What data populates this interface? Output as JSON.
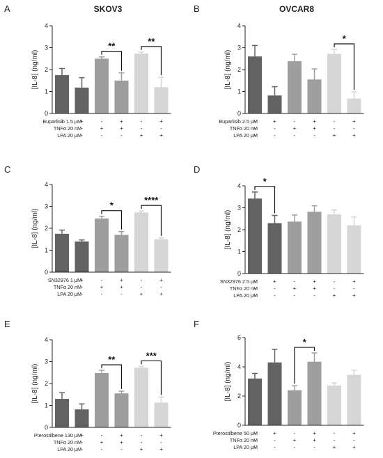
{
  "figure_titles": [
    "SKOV3",
    "OVCAR8"
  ],
  "chart_data": [
    {
      "panel": "A",
      "type": "bar",
      "title": "SKOV3",
      "ylabel": "[IL-8] (ng/ml)",
      "ylim": [
        0,
        4
      ],
      "yticks": [
        0,
        1,
        2,
        3,
        4
      ],
      "values": [
        1.75,
        1.18,
        2.5,
        1.5,
        2.73,
        1.2
      ],
      "errors": [
        0.3,
        0.45,
        0.08,
        0.35,
        0.07,
        0.45
      ],
      "colors": [
        "#626262",
        "#626262",
        "#9e9e9e",
        "#9e9e9e",
        "#d6d6d6",
        "#d6d6d6"
      ],
      "rows": [
        {
          "label": "Buparlisib 1.5 μM",
          "marks": [
            "-",
            "+",
            "-",
            "+",
            "-",
            "+"
          ]
        },
        {
          "label": "TNFα 20 nM",
          "marks": [
            "-",
            "-",
            "+",
            "+",
            "-",
            "-"
          ]
        },
        {
          "label": "LPA 20 μM",
          "marks": [
            "-",
            "-",
            "-",
            "-",
            "+",
            "+"
          ]
        }
      ],
      "significance": [
        {
          "from": 2,
          "to": 3,
          "label": "**"
        },
        {
          "from": 4,
          "to": 5,
          "label": "**"
        }
      ]
    },
    {
      "panel": "B",
      "type": "bar",
      "title": "OVCAR8",
      "ylabel": "[IL-8] (ng/ml)",
      "ylim": [
        0,
        4
      ],
      "yticks": [
        0,
        1,
        2,
        3,
        4
      ],
      "values": [
        2.6,
        0.82,
        2.38,
        1.55,
        2.72,
        0.68
      ],
      "errors": [
        0.5,
        0.4,
        0.32,
        0.48,
        0.2,
        0.3
      ],
      "colors": [
        "#626262",
        "#626262",
        "#9e9e9e",
        "#9e9e9e",
        "#d6d6d6",
        "#d6d6d6"
      ],
      "rows": [
        {
          "label": "Buparlisib 2.5 μM",
          "marks": [
            "-",
            "+",
            "-",
            "+",
            "-",
            "+"
          ]
        },
        {
          "label": "TNFα 20 nM",
          "marks": [
            "-",
            "-",
            "+",
            "+",
            "-",
            "-"
          ]
        },
        {
          "label": "LPA 20 μM",
          "marks": [
            "-",
            "-",
            "-",
            "-",
            "+",
            "+"
          ]
        }
      ],
      "significance": [
        {
          "from": 4,
          "to": 5,
          "label": "*"
        }
      ]
    },
    {
      "panel": "C",
      "type": "bar",
      "title": "",
      "ylabel": "[IL-8] (ng/ml)",
      "ylim": [
        0,
        4
      ],
      "yticks": [
        0,
        1,
        2,
        3,
        4
      ],
      "values": [
        1.75,
        1.4,
        2.45,
        1.7,
        2.72,
        1.5
      ],
      "errors": [
        0.17,
        0.07,
        0.1,
        0.15,
        0.07,
        0.06
      ],
      "colors": [
        "#626262",
        "#626262",
        "#9e9e9e",
        "#9e9e9e",
        "#d6d6d6",
        "#d6d6d6"
      ],
      "rows": [
        {
          "label": "SN32976 1 μM",
          "marks": [
            "-",
            "+",
            "-",
            "+",
            "-",
            "+"
          ]
        },
        {
          "label": "TNFα 20 nM",
          "marks": [
            "-",
            "-",
            "+",
            "+",
            "-",
            "-"
          ]
        },
        {
          "label": "LPA 20 μM",
          "marks": [
            "-",
            "-",
            "-",
            "-",
            "+",
            "+"
          ]
        }
      ],
      "significance": [
        {
          "from": 2,
          "to": 3,
          "label": "*"
        },
        {
          "from": 4,
          "to": 5,
          "label": "****"
        }
      ]
    },
    {
      "panel": "D",
      "type": "bar",
      "title": "",
      "ylabel": "[IL-8] (ng/ml)",
      "ylim": [
        0,
        4
      ],
      "yticks": [
        0,
        1,
        2,
        3,
        4
      ],
      "values": [
        3.42,
        2.3,
        2.37,
        2.82,
        2.7,
        2.2
      ],
      "errors": [
        0.3,
        0.35,
        0.3,
        0.27,
        0.2,
        0.38
      ],
      "colors": [
        "#626262",
        "#626262",
        "#9e9e9e",
        "#9e9e9e",
        "#d6d6d6",
        "#d6d6d6"
      ],
      "rows": [
        {
          "label": "SN32976 2.5 μM",
          "marks": [
            "-",
            "+",
            "-",
            "+",
            "-",
            "+"
          ]
        },
        {
          "label": "TNFα 20 nM",
          "marks": [
            "-",
            "-",
            "+",
            "+",
            "-",
            "-"
          ]
        },
        {
          "label": "LPA 20 μM",
          "marks": [
            "-",
            "-",
            "-",
            "-",
            "+",
            "+"
          ]
        }
      ],
      "significance": [
        {
          "from": 0,
          "to": 1,
          "label": "*"
        }
      ]
    },
    {
      "panel": "E",
      "type": "bar",
      "title": "",
      "ylabel": "[IL-8] (ng/ml)",
      "ylim": [
        0,
        4
      ],
      "yticks": [
        0,
        1,
        2,
        3,
        4
      ],
      "values": [
        1.3,
        0.82,
        2.48,
        1.55,
        2.72,
        1.13
      ],
      "errors": [
        0.28,
        0.25,
        0.12,
        0.1,
        0.06,
        0.25
      ],
      "colors": [
        "#626262",
        "#626262",
        "#9e9e9e",
        "#9e9e9e",
        "#d6d6d6",
        "#d6d6d6"
      ],
      "rows": [
        {
          "label": "Pterostilbene 130 μM",
          "marks": [
            "-",
            "+",
            "-",
            "+",
            "-",
            "+"
          ]
        },
        {
          "label": "TNFα 20 nM",
          "marks": [
            "-",
            "-",
            "+",
            "+",
            "-",
            "-"
          ]
        },
        {
          "label": "LPA 20 μM",
          "marks": [
            "-",
            "-",
            "-",
            "-",
            "+",
            "+"
          ]
        }
      ],
      "significance": [
        {
          "from": 2,
          "to": 3,
          "label": "**"
        },
        {
          "from": 4,
          "to": 5,
          "label": "***"
        }
      ]
    },
    {
      "panel": "F",
      "type": "bar",
      "title": "",
      "ylabel": "[IL-8] (ng/ml)",
      "ylim": [
        0,
        6
      ],
      "yticks": [
        0,
        2,
        4,
        6
      ],
      "values": [
        3.2,
        4.3,
        2.4,
        4.35,
        2.72,
        3.45
      ],
      "errors": [
        0.35,
        0.9,
        0.3,
        0.6,
        0.18,
        0.32
      ],
      "colors": [
        "#626262",
        "#626262",
        "#9e9e9e",
        "#9e9e9e",
        "#d6d6d6",
        "#d6d6d6"
      ],
      "rows": [
        {
          "label": "Pterostilbene 50 μM",
          "marks": [
            "-",
            "+",
            "-",
            "+",
            "-",
            "+"
          ]
        },
        {
          "label": "TNFα 20 nM",
          "marks": [
            "-",
            "-",
            "+",
            "+",
            "-",
            "-"
          ]
        },
        {
          "label": "LPA 20 μM",
          "marks": [
            "-",
            "-",
            "-",
            "-",
            "+",
            "+"
          ]
        }
      ],
      "significance": [
        {
          "from": 2,
          "to": 3,
          "label": "*"
        }
      ]
    }
  ]
}
